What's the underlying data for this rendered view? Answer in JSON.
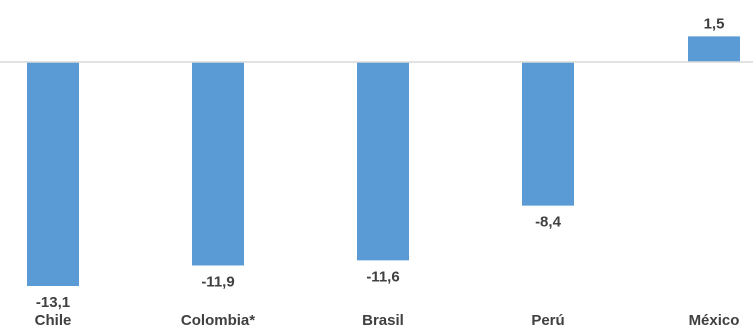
{
  "chart_data": {
    "type": "bar",
    "categories": [
      "Chile",
      "Colombia*",
      "Brasil",
      "Perú",
      "México"
    ],
    "values": [
      -13.1,
      -11.9,
      -11.6,
      -8.4,
      1.5
    ],
    "value_labels": [
      "-13,1",
      "-11,9",
      "-11,6",
      "-8,4",
      "1,5"
    ],
    "title": "",
    "xlabel": "",
    "ylabel": "",
    "bar_color": "#5b9bd5",
    "axis_color": "#d9d9d9",
    "grid": false,
    "legend": "none"
  }
}
